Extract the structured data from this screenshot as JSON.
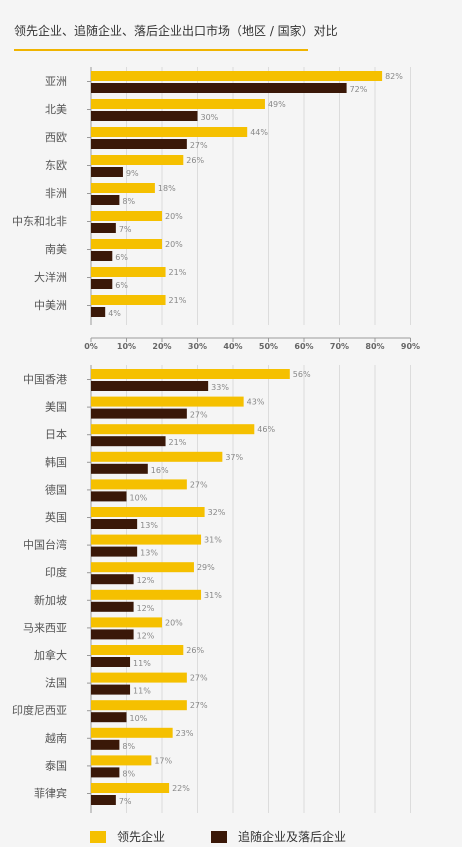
{
  "title": "领先企业、追随企业、落后企业出口市场（地区 / 国家）对比",
  "colors": {
    "lead": "#f5c000",
    "follow": "#3a1808",
    "grid": "#dcdcdc",
    "axis": "#9a9a9a",
    "label": "#555555"
  },
  "legend": {
    "lead_label": "领先企业",
    "follow_label": "追随企业及落后企业"
  },
  "chart_data": [
    {
      "type": "bar",
      "orientation": "horizontal",
      "title": "",
      "categories": [
        "亚洲",
        "北美",
        "西欧",
        "东欧",
        "非洲",
        "中东和北非",
        "南美",
        "大洋洲",
        "中美洲"
      ],
      "series": [
        {
          "name": "领先企业",
          "values": [
            82,
            49,
            44,
            26,
            18,
            20,
            20,
            21,
            21
          ]
        },
        {
          "name": "追随企业及落后企业",
          "values": [
            72,
            30,
            27,
            9,
            8,
            7,
            6,
            6,
            4
          ]
        }
      ],
      "xlim": [
        0,
        90
      ],
      "xticks": [
        "0%",
        "10%",
        "20%",
        "30%",
        "40%",
        "50%",
        "60%",
        "70%",
        "80%",
        "90%"
      ],
      "grid": true
    },
    {
      "type": "bar",
      "orientation": "horizontal",
      "title": "",
      "categories": [
        "中国香港",
        "美国",
        "日本",
        "韩国",
        "德国",
        "英国",
        "中国台湾",
        "印度",
        "新加坡",
        "马来西亚",
        "加拿大",
        "法国",
        "印度尼西亚",
        "越南",
        "泰国",
        "菲律宾"
      ],
      "series": [
        {
          "name": "领先企业",
          "values": [
            56,
            43,
            46,
            37,
            27,
            32,
            31,
            29,
            31,
            20,
            26,
            27,
            27,
            23,
            17,
            22
          ]
        },
        {
          "name": "追随企业及落后企业",
          "values": [
            33,
            27,
            21,
            16,
            10,
            13,
            13,
            12,
            12,
            12,
            11,
            11,
            10,
            8,
            8,
            7
          ]
        }
      ],
      "xlim": [
        0,
        90
      ],
      "grid": true
    }
  ]
}
